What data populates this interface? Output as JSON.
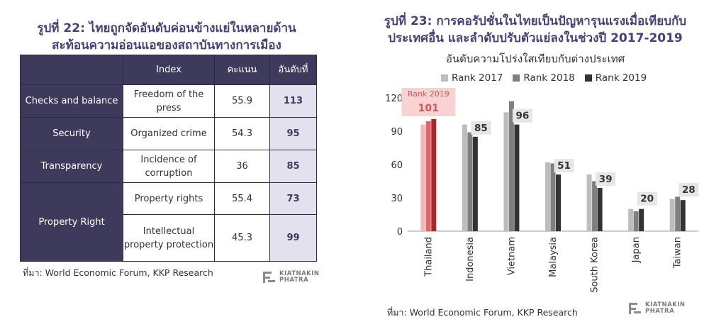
{
  "left": {
    "title_line1": "รูปที่ 22: ไทยถูกจัดอันดับค่อนข้างแย่ในหลายด้าน",
    "title_line2": "สะท้อนความอ่อนแอของสถาบันทางการเมือง",
    "headers": [
      "",
      "Index",
      "คะแนน",
      "อันดับที่"
    ],
    "rows": [
      {
        "category": "Checks and balance",
        "index": "Freedom of the press",
        "score": "55.9",
        "rank": "113"
      },
      {
        "category": "Security",
        "index": "Organized crime",
        "score": "54.3",
        "rank": "95"
      },
      {
        "category": "Transparency",
        "index": "Incidence of corruption",
        "score": "36",
        "rank": "85"
      },
      {
        "category": "Property Right",
        "index": "Property rights",
        "score": "55.4",
        "rank": "73"
      },
      {
        "category": "",
        "index": "Intellectual property protection",
        "score": "45.3",
        "rank": "99"
      }
    ],
    "source": "ที่มา: World Economic Forum, KKP Research"
  },
  "right": {
    "title_line1": "รูปที่ 23: การคอรัปชั่นในไทยเป็นปัญหารุนแรงเมื่อเทียบกับ",
    "title_line2": "ประเทศอื่น และลำดับปรับตัวแย่ลงในช่วงปี 2017-2019",
    "source": "ที่มา: World Economic Forum, KKP Research"
  },
  "logo": {
    "line1": "KIATNAKIN",
    "line2": "PHATRA"
  },
  "chart_data": {
    "type": "bar",
    "title": "อันดับความโปร่งใสเทียบกับต่างประเทศ",
    "categories": [
      "Thailand",
      "Indonesia",
      "Vietnam",
      "Malaysia",
      "South Korea",
      "Japan",
      "Taiwan"
    ],
    "series": [
      {
        "name": "Rank 2017",
        "values": [
          96,
          96,
          107,
          62,
          51,
          20,
          29
        ]
      },
      {
        "name": "Rank 2018",
        "values": [
          99,
          89,
          117,
          61,
          45,
          18,
          31
        ]
      },
      {
        "name": "Rank 2019",
        "values": [
          101,
          85,
          96,
          51,
          39,
          20,
          28
        ]
      }
    ],
    "data_labels": [
      "101",
      "85",
      "96",
      "51",
      "39",
      "20",
      "28"
    ],
    "highlight_label": "Rank 2019",
    "ylim": [
      0,
      120
    ],
    "yticks": [
      0,
      30,
      60,
      90,
      120
    ],
    "legend_position": "top",
    "colors": {
      "rank_2017": "#bdbdbd",
      "rank_2018": "#7f7f7f",
      "rank_2019": "#333333",
      "thailand_2017": "#f4b8b8",
      "thailand_2018": "#e06666",
      "thailand_2019": "#a52a2a",
      "highlight_bg": "#f9d3d3",
      "highlight_text": "#d9534f",
      "label_bg": "#e6e6e6"
    }
  }
}
